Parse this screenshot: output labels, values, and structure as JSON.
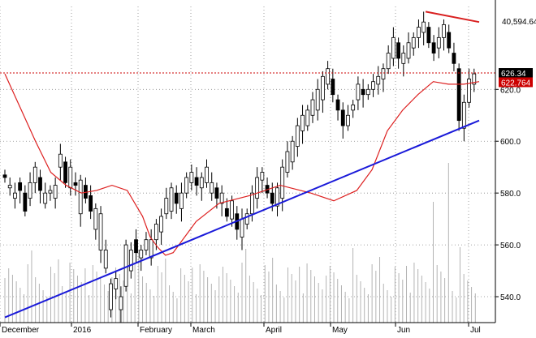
{
  "chart_data": {
    "type": "candlestick",
    "ylim": [
      530,
      652
    ],
    "y_ticks": [
      540,
      560,
      580,
      600,
      620
    ],
    "x_labels": [
      "December",
      "2016",
      "February",
      "March",
      "April",
      "May",
      "Jun",
      "Jul"
    ],
    "top_readout": "40,594.64",
    "price_boxes": [
      {
        "label": "626.34",
        "value": 626.34,
        "bg": "#000000",
        "fg": "#ffffff"
      },
      {
        "label": "622.764",
        "value": 622.764,
        "bg": "#cc0000",
        "fg": "#ffffff"
      }
    ],
    "reference_line": {
      "value": 626.34,
      "color": "#cc0000",
      "style": "dotted"
    },
    "trendlines": [
      {
        "color": "#1a1ad9",
        "points": [
          [
            0,
            532
          ],
          [
            124,
            608
          ]
        ]
      },
      {
        "color": "#d92020",
        "points": [
          [
            110,
            650
          ],
          [
            124,
            646
          ]
        ]
      }
    ],
    "moving_average": {
      "color": "#dd2020",
      "points": [
        [
          0,
          626
        ],
        [
          4,
          613
        ],
        [
          8,
          600
        ],
        [
          12,
          588
        ],
        [
          16,
          583
        ],
        [
          20,
          580
        ],
        [
          24,
          581
        ],
        [
          28,
          583
        ],
        [
          32,
          581
        ],
        [
          36,
          571
        ],
        [
          38,
          563
        ],
        [
          40,
          559
        ],
        [
          42,
          556
        ],
        [
          44,
          557
        ],
        [
          46,
          561
        ],
        [
          50,
          569
        ],
        [
          56,
          576
        ],
        [
          64,
          579
        ],
        [
          72,
          583
        ],
        [
          80,
          580
        ],
        [
          86,
          577
        ],
        [
          92,
          581
        ],
        [
          96,
          589
        ],
        [
          100,
          604
        ],
        [
          104,
          612
        ],
        [
          108,
          618
        ],
        [
          112,
          623
        ],
        [
          116,
          622
        ],
        [
          120,
          622
        ],
        [
          124,
          623
        ]
      ]
    },
    "candles_open_close": [
      [
        587,
        586
      ],
      [
        582,
        583
      ],
      [
        578,
        580
      ],
      [
        584,
        581
      ],
      [
        580,
        573
      ],
      [
        578,
        584
      ],
      [
        584,
        590
      ],
      [
        586,
        581
      ],
      [
        576,
        580
      ],
      [
        580,
        581
      ],
      [
        578,
        583
      ],
      [
        590,
        595
      ],
      [
        592,
        584
      ],
      [
        582,
        590
      ],
      [
        584,
        583
      ],
      [
        572,
        585
      ],
      [
        583,
        578
      ],
      [
        579,
        573
      ],
      [
        566,
        574
      ],
      [
        558,
        572
      ],
      [
        551,
        558
      ],
      [
        535,
        545
      ],
      [
        543,
        547
      ],
      [
        535,
        540
      ],
      [
        544,
        560
      ],
      [
        550,
        558
      ],
      [
        562,
        557
      ],
      [
        555,
        558
      ],
      [
        558,
        562
      ],
      [
        555,
        562
      ],
      [
        562,
        568
      ],
      [
        565,
        571
      ],
      [
        572,
        578
      ],
      [
        573,
        582
      ],
      [
        580,
        576
      ],
      [
        574,
        580
      ],
      [
        580,
        586
      ],
      [
        584,
        588
      ],
      [
        586,
        583
      ],
      [
        582,
        586
      ],
      [
        584,
        590
      ],
      [
        580,
        584
      ],
      [
        582,
        578
      ],
      [
        576,
        580
      ],
      [
        574,
        571
      ],
      [
        570,
        577
      ],
      [
        572,
        566
      ],
      [
        563,
        570
      ],
      [
        568,
        572
      ],
      [
        572,
        580
      ],
      [
        578,
        586
      ],
      [
        585,
        588
      ],
      [
        583,
        580
      ],
      [
        580,
        576
      ],
      [
        575,
        582
      ],
      [
        578,
        590
      ],
      [
        588,
        596
      ],
      [
        592,
        600
      ],
      [
        598,
        606
      ],
      [
        604,
        610
      ],
      [
        606,
        612
      ],
      [
        610,
        616
      ],
      [
        612,
        620
      ],
      [
        616,
        625
      ],
      [
        622,
        628
      ],
      [
        624,
        618
      ],
      [
        616,
        612
      ],
      [
        612,
        606
      ],
      [
        606,
        610
      ],
      [
        612,
        614
      ],
      [
        616,
        622
      ],
      [
        620,
        618
      ],
      [
        618,
        620
      ],
      [
        620,
        623
      ],
      [
        622,
        625
      ],
      [
        624,
        628
      ],
      [
        628,
        634
      ],
      [
        632,
        640
      ],
      [
        638,
        632
      ],
      [
        630,
        634
      ],
      [
        632,
        638
      ],
      [
        636,
        640
      ],
      [
        640,
        644
      ],
      [
        642,
        646
      ],
      [
        644,
        638
      ],
      [
        638,
        634
      ],
      [
        636,
        640
      ],
      [
        640,
        645
      ],
      [
        642,
        636
      ],
      [
        634,
        630
      ],
      [
        628,
        608
      ],
      [
        605,
        615
      ],
      [
        615,
        624
      ],
      [
        622,
        626
      ]
    ],
    "volume_note": "gray volume bars along the bottom"
  }
}
